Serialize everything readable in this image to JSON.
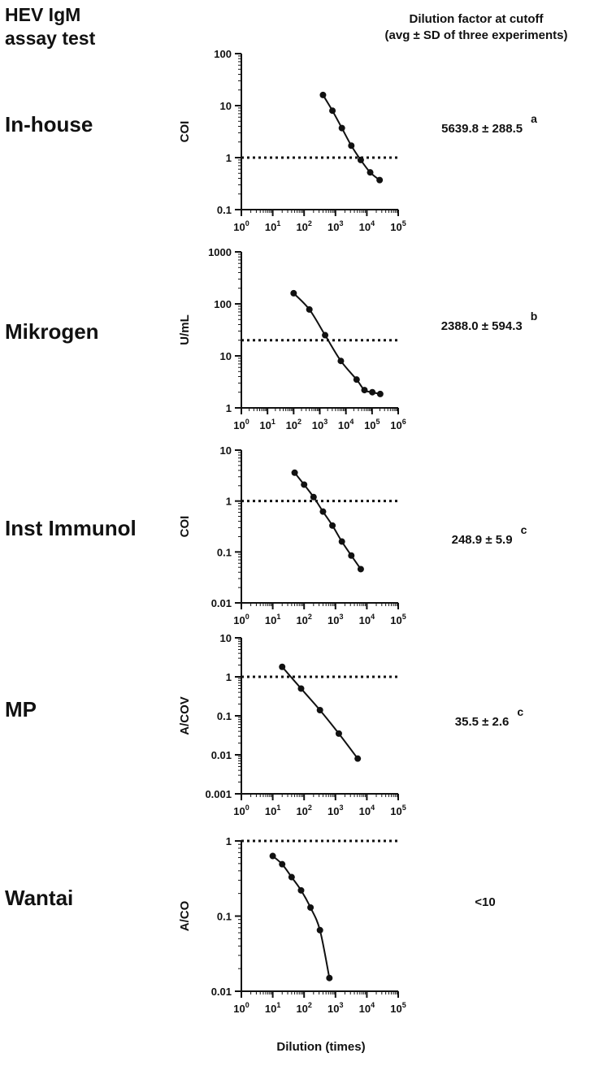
{
  "header": {
    "left_line1": "HEV IgM",
    "left_line2": "assay test",
    "right_line1": "Dilution factor at cutoff",
    "right_line2": "(avg ± SD of three experiments)"
  },
  "x_axis_title": "Dilution (times)",
  "chart_data": [
    {
      "type": "line",
      "assay": "In-house",
      "result": "5639.8 ± 288.5",
      "result_sup": "a",
      "ylabel": "COI",
      "xscale": "log",
      "yscale": "log",
      "xlim": [
        1,
        100000
      ],
      "ylim": [
        0.1,
        100
      ],
      "xticks": [
        1,
        10,
        100,
        1000,
        10000,
        100000
      ],
      "xtick_labels": [
        {
          "base": "10",
          "exp": "0"
        },
        {
          "base": "10",
          "exp": "1"
        },
        {
          "base": "10",
          "exp": "2"
        },
        {
          "base": "10",
          "exp": "3"
        },
        {
          "base": "10",
          "exp": "4"
        },
        {
          "base": "10",
          "exp": "5"
        }
      ],
      "yticks": [
        0.1,
        1,
        10,
        100
      ],
      "ytick_labels": [
        "0.1",
        "1",
        "10",
        "100"
      ],
      "cutoff": 1,
      "x": [
        400,
        800,
        1600,
        3200,
        6400,
        12800,
        25600
      ],
      "y": [
        16,
        8,
        3.7,
        1.7,
        0.9,
        0.52,
        0.37
      ]
    },
    {
      "type": "line",
      "assay": "Mikrogen",
      "result": "2388.0 ± 594.3",
      "result_sup": "b",
      "ylabel": "U/mL",
      "xscale": "log",
      "yscale": "log",
      "xlim": [
        1,
        1000000
      ],
      "ylim": [
        1,
        1000
      ],
      "xticks": [
        1,
        10,
        100,
        1000,
        10000,
        100000,
        1000000
      ],
      "xtick_labels": [
        {
          "base": "10",
          "exp": "0"
        },
        {
          "base": "10",
          "exp": "1"
        },
        {
          "base": "10",
          "exp": "2"
        },
        {
          "base": "10",
          "exp": "3"
        },
        {
          "base": "10",
          "exp": "4"
        },
        {
          "base": "10",
          "exp": "5"
        },
        {
          "base": "10",
          "exp": "6"
        }
      ],
      "yticks": [
        1,
        10,
        100,
        1000
      ],
      "ytick_labels": [
        "1",
        "10",
        "100",
        "1000"
      ],
      "cutoff": 20,
      "x": [
        100,
        400,
        1600,
        6400,
        25600,
        51200,
        102400,
        204800
      ],
      "y": [
        160,
        78,
        25,
        8,
        3.5,
        2.2,
        2.0,
        1.85
      ]
    },
    {
      "type": "line",
      "assay": "Inst Immunol",
      "result": "248.9 ± 5.9",
      "result_sup": "c",
      "ylabel": "COI",
      "xscale": "log",
      "yscale": "log",
      "xlim": [
        1,
        100000
      ],
      "ylim": [
        0.01,
        10
      ],
      "xticks": [
        1,
        10,
        100,
        1000,
        10000,
        100000
      ],
      "xtick_labels": [
        {
          "base": "10",
          "exp": "0"
        },
        {
          "base": "10",
          "exp": "1"
        },
        {
          "base": "10",
          "exp": "2"
        },
        {
          "base": "10",
          "exp": "3"
        },
        {
          "base": "10",
          "exp": "4"
        },
        {
          "base": "10",
          "exp": "5"
        }
      ],
      "yticks": [
        0.01,
        0.1,
        1,
        10
      ],
      "ytick_labels": [
        "0.01",
        "0.1",
        "1",
        "10"
      ],
      "cutoff": 1,
      "x": [
        50,
        100,
        200,
        400,
        800,
        1600,
        3200,
        6400
      ],
      "y": [
        3.6,
        2.1,
        1.2,
        0.62,
        0.33,
        0.16,
        0.085,
        0.046
      ]
    },
    {
      "type": "line",
      "assay": "MP",
      "result": "35.5 ± 2.6",
      "result_sup": "c",
      "ylabel": "A/COV",
      "xscale": "log",
      "yscale": "log",
      "xlim": [
        1,
        100000
      ],
      "ylim": [
        0.001,
        10
      ],
      "xticks": [
        1,
        10,
        100,
        1000,
        10000,
        100000
      ],
      "xtick_labels": [
        {
          "base": "10",
          "exp": "0"
        },
        {
          "base": "10",
          "exp": "1"
        },
        {
          "base": "10",
          "exp": "2"
        },
        {
          "base": "10",
          "exp": "3"
        },
        {
          "base": "10",
          "exp": "4"
        },
        {
          "base": "10",
          "exp": "5"
        }
      ],
      "yticks": [
        0.001,
        0.01,
        0.1,
        1,
        10
      ],
      "ytick_labels": [
        "0.001",
        "0.01",
        "0.1",
        "1",
        "10"
      ],
      "cutoff": 1,
      "x": [
        20,
        80,
        320,
        1280,
        5120
      ],
      "y": [
        1.8,
        0.5,
        0.14,
        0.035,
        0.008
      ]
    },
    {
      "type": "line",
      "assay": "Wantai",
      "result": "<10",
      "result_sup": "",
      "ylabel": "A/CO",
      "xscale": "log",
      "yscale": "log",
      "xlim": [
        1,
        100000
      ],
      "ylim": [
        0.01,
        1
      ],
      "xticks": [
        1,
        10,
        100,
        1000,
        10000,
        100000
      ],
      "xtick_labels": [
        {
          "base": "10",
          "exp": "0"
        },
        {
          "base": "10",
          "exp": "1"
        },
        {
          "base": "10",
          "exp": "2"
        },
        {
          "base": "10",
          "exp": "3"
        },
        {
          "base": "10",
          "exp": "4"
        },
        {
          "base": "10",
          "exp": "5"
        }
      ],
      "yticks": [
        0.01,
        0.1,
        1
      ],
      "ytick_labels": [
        "0.01",
        "0.1",
        "1"
      ],
      "cutoff": 1,
      "x": [
        10,
        20,
        40,
        80,
        160,
        320,
        640
      ],
      "y": [
        0.63,
        0.49,
        0.33,
        0.22,
        0.13,
        0.065,
        0.015
      ]
    }
  ]
}
